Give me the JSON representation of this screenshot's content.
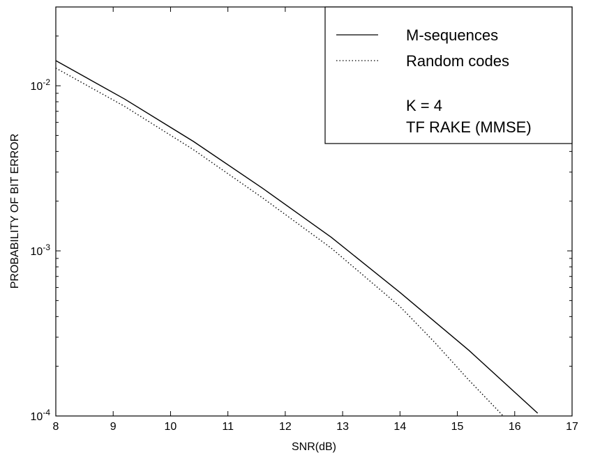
{
  "chart_data": {
    "type": "line",
    "title": "",
    "xlabel": "SNR(dB)",
    "ylabel": "PROBABILITY OF BIT ERROR",
    "xlim": [
      8,
      17
    ],
    "ylim": [
      0.0001,
      0.03
    ],
    "yscale": "log",
    "grid": false,
    "legend_position": "top-right",
    "x_ticks": [
      "8",
      "9",
      "10",
      "11",
      "12",
      "13",
      "14",
      "15",
      "16",
      "17"
    ],
    "y_ticks": [
      {
        "value": 0.01,
        "base": "10",
        "exp": "-2"
      },
      {
        "value": 0.001,
        "base": "10",
        "exp": "-3"
      },
      {
        "value": 0.0001,
        "base": "10",
        "exp": "-4"
      }
    ],
    "series": [
      {
        "name": "M-sequences",
        "style": "solid",
        "color": "#000000",
        "x": [
          8,
          9.2,
          10.4,
          11.6,
          12.8,
          14.0,
          15.2,
          16.4
        ],
        "y": [
          0.0142,
          0.0083,
          0.0046,
          0.0024,
          0.00121,
          0.00056,
          0.00025,
          0.000104
        ]
      },
      {
        "name": "Random codes",
        "style": "dotted",
        "color": "#000000",
        "x": [
          8,
          9.2,
          10.4,
          11.6,
          12.8,
          14.0,
          14.6,
          15.2,
          15.8
        ],
        "y": [
          0.0128,
          0.0075,
          0.0041,
          0.0021,
          0.00104,
          0.00046,
          0.00028,
          0.000165,
          0.0001
        ]
      }
    ],
    "annotations": [
      "K = 4",
      "TF RAKE (MMSE)"
    ]
  }
}
